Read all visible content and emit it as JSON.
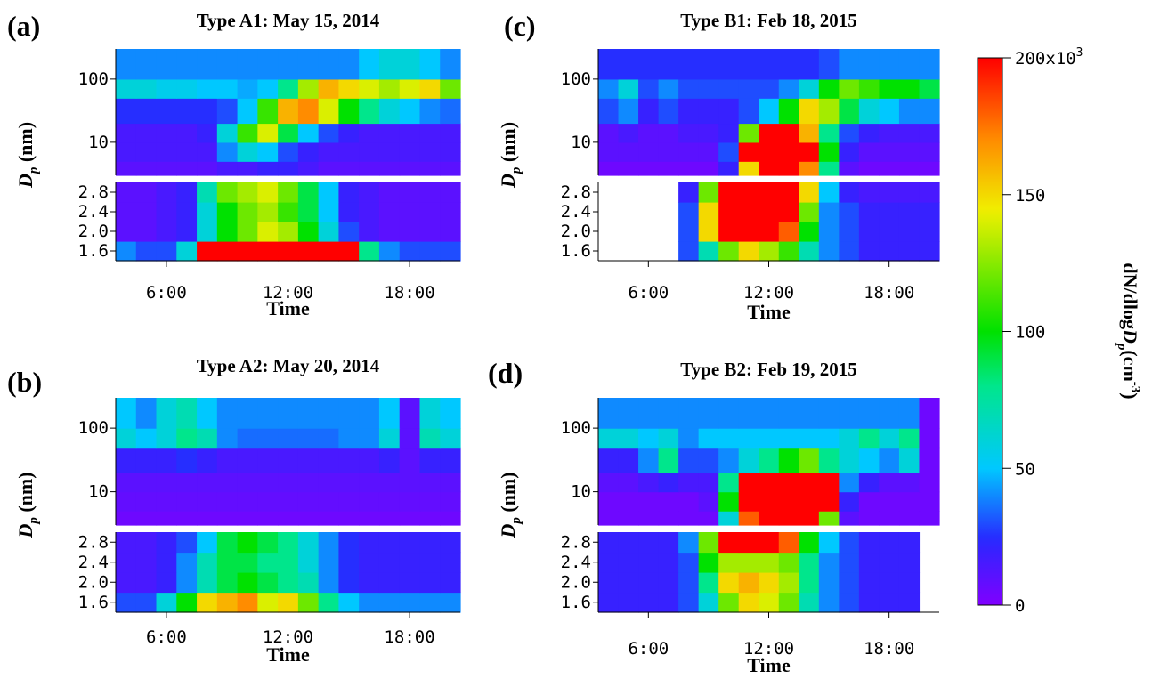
{
  "chart_data": [
    {
      "type": "heatmap",
      "label": "(a)",
      "title": "Type A1: May 15, 2014",
      "xlabel": "Time",
      "ylabel": {
        "main": "D",
        "sub": "p",
        "unit": " (nm)"
      },
      "xlim": [
        3.5,
        20.5
      ],
      "xticks": [
        {
          "value": 6,
          "label": "6:00"
        },
        {
          "value": 12,
          "label": "12:00"
        },
        {
          "value": 18,
          "label": "18:00"
        }
      ],
      "x_bins": [
        3.5,
        4.5,
        5.5,
        6.5,
        7.5,
        8.5,
        9.5,
        10.5,
        11.5,
        12.5,
        13.5,
        14.5,
        15.5,
        16.5,
        17.5,
        18.5,
        19.5,
        20.5
      ],
      "upper": {
        "log": true,
        "ylim": [
          3,
          300
        ],
        "yticks": [
          10,
          100
        ],
        "y_bins": [
          3,
          5,
          10,
          20,
          50,
          100,
          300
        ],
        "z": [
          [
            10,
            10,
            10,
            10,
            10,
            15,
            15,
            20,
            20,
            15,
            10,
            10,
            10,
            10,
            10,
            10,
            10
          ],
          [
            15,
            15,
            15,
            15,
            15,
            40,
            60,
            50,
            30,
            20,
            15,
            15,
            15,
            15,
            15,
            15,
            15
          ],
          [
            15,
            15,
            15,
            15,
            20,
            60,
            110,
            140,
            90,
            50,
            30,
            20,
            15,
            15,
            15,
            15,
            15
          ],
          [
            25,
            25,
            25,
            25,
            25,
            30,
            50,
            110,
            160,
            170,
            140,
            100,
            80,
            60,
            50,
            40,
            35
          ],
          [
            60,
            60,
            55,
            55,
            50,
            50,
            45,
            50,
            80,
            130,
            160,
            150,
            140,
            130,
            140,
            150,
            120
          ],
          [
            40,
            40,
            40,
            40,
            40,
            40,
            40,
            40,
            40,
            40,
            40,
            40,
            50,
            60,
            60,
            50,
            40
          ]
        ]
      },
      "lower": {
        "log": false,
        "ylim": [
          1.4,
          3.0
        ],
        "yticks": [
          1.6,
          {
            "value": 2,
            "label": "2.0"
          },
          2.4,
          2.8
        ],
        "y_bins": [
          1.4,
          1.8,
          2.2,
          2.6,
          3.0
        ],
        "z": [
          [
            40,
            30,
            30,
            60,
            200,
            200,
            200,
            200,
            200,
            200,
            200,
            200,
            80,
            40,
            30,
            30,
            30
          ],
          [
            10,
            10,
            15,
            20,
            60,
            100,
            120,
            140,
            130,
            100,
            60,
            30,
            15,
            10,
            10,
            10,
            10
          ],
          [
            10,
            10,
            15,
            20,
            60,
            100,
            120,
            130,
            110,
            90,
            50,
            20,
            15,
            10,
            10,
            10,
            10
          ],
          [
            10,
            10,
            15,
            20,
            70,
            120,
            130,
            140,
            120,
            90,
            50,
            20,
            15,
            10,
            10,
            10,
            10
          ]
        ]
      }
    },
    {
      "type": "heatmap",
      "label": "(c)",
      "title": "Type B1: Feb 18, 2015",
      "xlabel": "Time",
      "ylabel": {
        "main": "D",
        "sub": "p",
        "unit": " (nm)"
      },
      "xlim": [
        3.5,
        20.5
      ],
      "xticks": [
        {
          "value": 6,
          "label": "6:00"
        },
        {
          "value": 12,
          "label": "12:00"
        },
        {
          "value": 18,
          "label": "18:00"
        }
      ],
      "x_bins": [
        3.5,
        4.5,
        5.5,
        6.5,
        7.5,
        8.5,
        9.5,
        10.5,
        11.5,
        12.5,
        13.5,
        14.5,
        15.5,
        16.5,
        17.5,
        18.5,
        19.5,
        20.5
      ],
      "upper": {
        "log": true,
        "ylim": [
          3,
          300
        ],
        "yticks": [
          10,
          100
        ],
        "y_bins": [
          3,
          5,
          10,
          20,
          50,
          100,
          300
        ],
        "z": [
          [
            5,
            5,
            5,
            5,
            5,
            5,
            20,
            150,
            200,
            200,
            170,
            80,
            10,
            5,
            5,
            5,
            5
          ],
          [
            10,
            10,
            10,
            10,
            10,
            10,
            30,
            200,
            200,
            200,
            200,
            100,
            20,
            10,
            10,
            10,
            10
          ],
          [
            10,
            15,
            10,
            10,
            15,
            15,
            20,
            120,
            200,
            200,
            160,
            80,
            30,
            20,
            15,
            15,
            15
          ],
          [
            30,
            40,
            20,
            30,
            20,
            20,
            20,
            30,
            50,
            100,
            150,
            130,
            90,
            60,
            50,
            40,
            40
          ],
          [
            40,
            60,
            30,
            40,
            30,
            30,
            30,
            30,
            30,
            40,
            60,
            100,
            120,
            110,
            100,
            100,
            90
          ],
          [
            25,
            25,
            25,
            25,
            25,
            25,
            25,
            25,
            25,
            25,
            25,
            30,
            40,
            40,
            40,
            40,
            40
          ]
        ]
      },
      "lower": {
        "log": false,
        "ylim": [
          1.4,
          3.0
        ],
        "yticks": [
          1.6,
          {
            "value": 2,
            "label": "2.0"
          },
          2.4,
          2.8
        ],
        "y_bins": [
          1.4,
          1.8,
          2.2,
          2.6,
          3.0
        ],
        "z": [
          [
            null,
            null,
            null,
            null,
            30,
            70,
            120,
            150,
            130,
            110,
            70,
            40,
            30,
            20,
            20,
            20,
            20
          ],
          [
            null,
            null,
            null,
            null,
            30,
            150,
            200,
            200,
            200,
            180,
            100,
            40,
            30,
            20,
            20,
            20,
            20
          ],
          [
            null,
            null,
            null,
            null,
            30,
            150,
            200,
            200,
            200,
            200,
            120,
            40,
            30,
            20,
            20,
            20,
            20
          ],
          [
            null,
            null,
            null,
            null,
            20,
            120,
            200,
            200,
            200,
            200,
            150,
            50,
            20,
            15,
            15,
            15,
            15
          ]
        ]
      }
    },
    {
      "type": "heatmap",
      "label": "(b)",
      "title": "Type A2: May 20, 2014",
      "xlabel": "Time",
      "ylabel": {
        "main": "D",
        "sub": "p",
        "unit": " (nm)"
      },
      "xlim": [
        3.5,
        20.5
      ],
      "xticks": [
        {
          "value": 6,
          "label": "6:00"
        },
        {
          "value": 12,
          "label": "12:00"
        },
        {
          "value": 18,
          "label": "18:00"
        }
      ],
      "x_bins": [
        3.5,
        4.5,
        5.5,
        6.5,
        7.5,
        8.5,
        9.5,
        10.5,
        11.5,
        12.5,
        13.5,
        14.5,
        15.5,
        16.5,
        17.5,
        18.5,
        19.5,
        20.5
      ],
      "upper": {
        "log": true,
        "ylim": [
          3,
          300
        ],
        "yticks": [
          10,
          100
        ],
        "y_bins": [
          3,
          5,
          10,
          20,
          50,
          100,
          300
        ],
        "z": [
          [
            5,
            5,
            5,
            5,
            5,
            5,
            5,
            5,
            5,
            5,
            5,
            5,
            5,
            5,
            5,
            5,
            5
          ],
          [
            8,
            8,
            8,
            8,
            8,
            8,
            8,
            8,
            8,
            8,
            8,
            8,
            8,
            8,
            8,
            8,
            8
          ],
          [
            10,
            10,
            10,
            10,
            10,
            10,
            10,
            10,
            10,
            10,
            10,
            10,
            10,
            10,
            10,
            10,
            10
          ],
          [
            20,
            20,
            20,
            25,
            20,
            15,
            15,
            15,
            15,
            15,
            15,
            15,
            15,
            20,
            10,
            20,
            20
          ],
          [
            60,
            50,
            60,
            80,
            70,
            40,
            35,
            35,
            35,
            35,
            35,
            40,
            40,
            60,
            10,
            70,
            60
          ],
          [
            50,
            40,
            60,
            70,
            50,
            40,
            40,
            40,
            40,
            40,
            40,
            40,
            40,
            50,
            10,
            60,
            50
          ]
        ]
      },
      "lower": {
        "log": false,
        "ylim": [
          1.4,
          3.0
        ],
        "yticks": [
          1.6,
          {
            "value": 2,
            "label": "2.0"
          },
          2.4,
          2.8
        ],
        "y_bins": [
          1.4,
          1.8,
          2.2,
          2.6,
          3.0
        ],
        "z": [
          [
            30,
            30,
            60,
            100,
            150,
            160,
            170,
            140,
            150,
            120,
            80,
            50,
            40,
            40,
            40,
            40,
            40
          ],
          [
            15,
            15,
            20,
            40,
            70,
            90,
            100,
            90,
            80,
            70,
            40,
            25,
            20,
            20,
            20,
            20,
            20
          ],
          [
            15,
            15,
            20,
            40,
            70,
            90,
            90,
            80,
            80,
            60,
            40,
            25,
            20,
            20,
            20,
            20,
            20
          ],
          [
            15,
            15,
            20,
            30,
            50,
            90,
            100,
            90,
            80,
            60,
            40,
            25,
            20,
            20,
            20,
            20,
            20
          ]
        ]
      }
    },
    {
      "type": "heatmap",
      "label": "(d)",
      "title": "Type B2: Feb 19, 2015",
      "xlabel": "Time",
      "ylabel": {
        "main": "D",
        "sub": "p",
        "unit": " (nm)"
      },
      "xlim": [
        3.5,
        20.5
      ],
      "xticks": [
        {
          "value": 6,
          "label": "6:00"
        },
        {
          "value": 12,
          "label": "12:00"
        },
        {
          "value": 18,
          "label": "18:00"
        }
      ],
      "x_bins": [
        3.5,
        4.5,
        5.5,
        6.5,
        7.5,
        8.5,
        9.5,
        10.5,
        11.5,
        12.5,
        13.5,
        14.5,
        15.5,
        16.5,
        17.5,
        18.5,
        19.5,
        20.5
      ],
      "upper": {
        "log": true,
        "ylim": [
          3,
          300
        ],
        "yticks": [
          10,
          100
        ],
        "y_bins": [
          3,
          5,
          10,
          20,
          50,
          100,
          300
        ],
        "z": [
          [
            5,
            5,
            5,
            5,
            5,
            5,
            60,
            180,
            200,
            200,
            200,
            120,
            10,
            5,
            5,
            5,
            5
          ],
          [
            5,
            5,
            5,
            5,
            5,
            10,
            100,
            200,
            200,
            200,
            200,
            200,
            20,
            5,
            5,
            5,
            5
          ],
          [
            10,
            10,
            15,
            20,
            15,
            15,
            80,
            200,
            200,
            200,
            200,
            200,
            40,
            20,
            10,
            10,
            5
          ],
          [
            20,
            20,
            40,
            80,
            30,
            30,
            40,
            60,
            80,
            100,
            120,
            80,
            60,
            50,
            40,
            60,
            5
          ],
          [
            60,
            60,
            50,
            60,
            40,
            50,
            50,
            50,
            50,
            50,
            50,
            50,
            60,
            80,
            60,
            80,
            5
          ],
          [
            40,
            40,
            40,
            40,
            40,
            40,
            40,
            40,
            40,
            40,
            40,
            40,
            40,
            40,
            40,
            40,
            5
          ]
        ]
      },
      "lower": {
        "log": false,
        "ylim": [
          1.4,
          3.0
        ],
        "yticks": [
          1.6,
          {
            "value": 2,
            "label": "2.0"
          },
          2.4,
          2.8
        ],
        "y_bins": [
          1.4,
          1.8,
          2.2,
          2.6,
          3.0
        ],
        "z": [
          [
            20,
            20,
            20,
            20,
            30,
            60,
            120,
            150,
            140,
            120,
            70,
            40,
            30,
            20,
            20,
            20,
            null
          ],
          [
            20,
            20,
            20,
            20,
            30,
            80,
            150,
            160,
            150,
            130,
            80,
            40,
            30,
            20,
            20,
            20,
            null
          ],
          [
            20,
            20,
            20,
            20,
            30,
            100,
            130,
            130,
            130,
            120,
            80,
            40,
            30,
            20,
            20,
            20,
            null
          ],
          [
            20,
            20,
            20,
            20,
            40,
            120,
            200,
            200,
            200,
            180,
            100,
            50,
            30,
            20,
            20,
            20,
            null
          ]
        ]
      }
    }
  ],
  "colorbar": {
    "clim": [
      0,
      200
    ],
    "ticks": [
      0,
      50,
      100,
      150,
      200
    ],
    "multiplier": "x10",
    "multiplier_exp": "3",
    "title": {
      "pre": "dN/dlog",
      "var": "D",
      "sub": "p",
      "unit": "(cm",
      "exp": "-3",
      "close": ")"
    }
  }
}
